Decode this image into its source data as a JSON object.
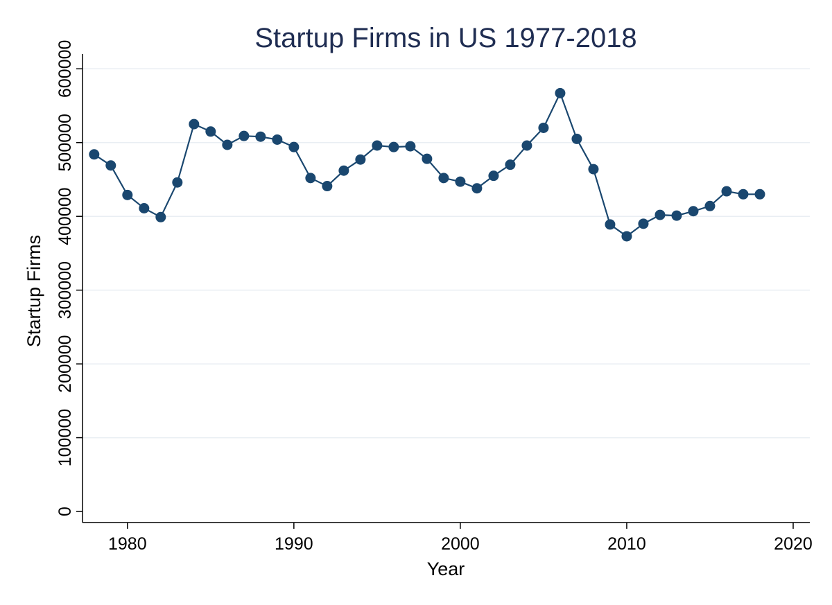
{
  "chart_data": {
    "type": "line",
    "title": "Startup Firms in US 1977-2018",
    "xlabel": "Year",
    "ylabel": "Startup Firms",
    "xlim": [
      1977.3,
      2021
    ],
    "ylim": [
      -15000,
      620000
    ],
    "xticks": [
      1980,
      1990,
      2000,
      2010,
      2020
    ],
    "yticks": [
      0,
      100000,
      200000,
      300000,
      400000,
      500000,
      600000
    ],
    "grid": "horizontal",
    "line_color": "#1a476f",
    "title_color": "#1f2d52",
    "series": [
      {
        "x": [
          1978,
          1979,
          1980,
          1981,
          1982,
          1983,
          1984,
          1985,
          1986,
          1987,
          1988,
          1989,
          1990,
          1991,
          1992,
          1993,
          1994,
          1995,
          1996,
          1997,
          1998,
          1999,
          2000,
          2001,
          2002,
          2003,
          2004,
          2005,
          2006,
          2007,
          2008,
          2009,
          2010,
          2011,
          2012,
          2013,
          2014,
          2015,
          2016,
          2017,
          2018
        ],
        "values": [
          484000,
          469000,
          429000,
          411000,
          399000,
          446000,
          525000,
          515000,
          497000,
          509000,
          508000,
          504000,
          494000,
          452000,
          441000,
          462000,
          477000,
          496000,
          494000,
          495000,
          478000,
          452000,
          447000,
          438000,
          455000,
          470000,
          496000,
          520000,
          567000,
          505000,
          464000,
          389000,
          373000,
          390000,
          402000,
          401000,
          407000,
          414000,
          434000,
          430000,
          430000
        ]
      }
    ]
  }
}
